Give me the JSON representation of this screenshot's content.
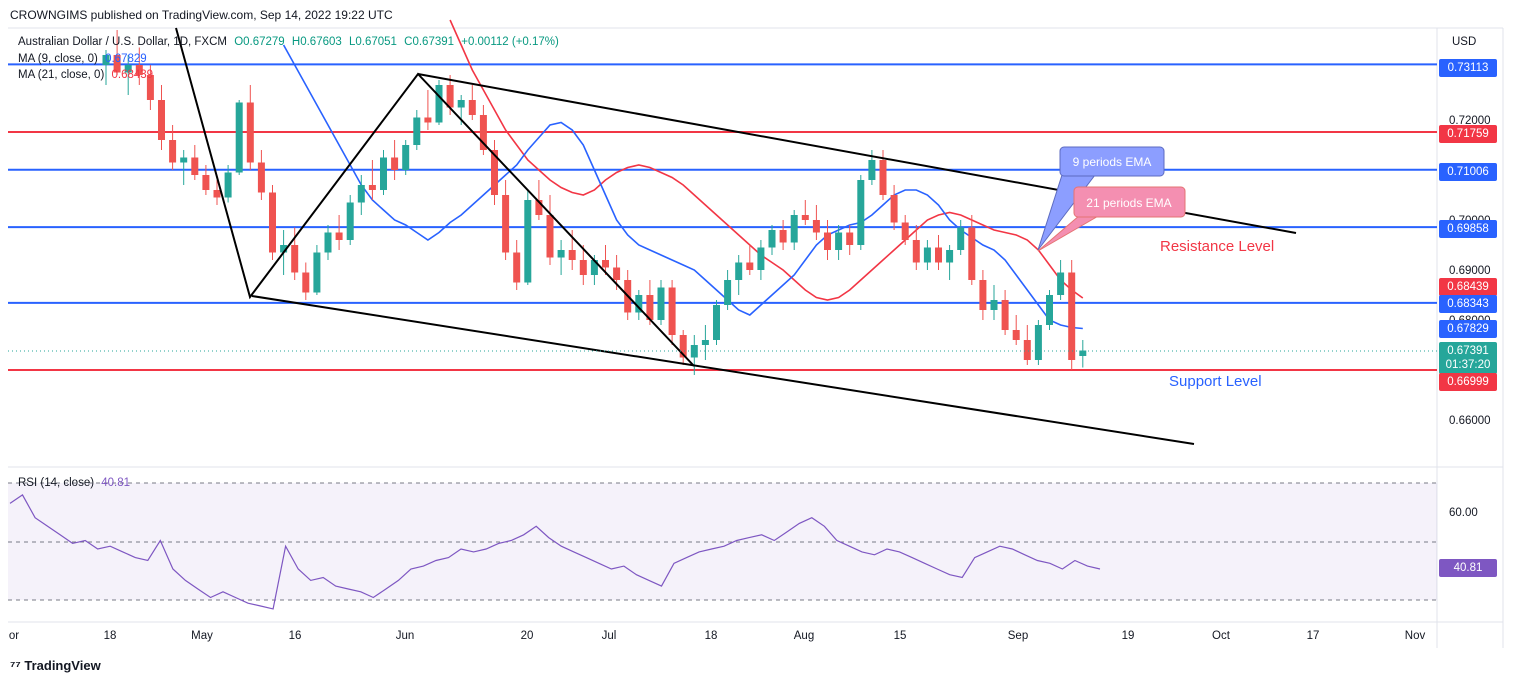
{
  "header": {
    "publisher": "CROWNGIMS published on TradingView.com, Sep 14, 2022 19:22 UTC",
    "symbol": "Australian Dollar / U.S. Dollar, 1D, FXCM",
    "ohlc": {
      "o": "O0.67279",
      "h": "H0.67603",
      "l": "L0.67051",
      "c": "C0.67391",
      "chg": "+0.00112 (+0.17%)"
    },
    "ma9": {
      "label": "MA (9, close, 0)",
      "value": "0.67829"
    },
    "ma21": {
      "label": "MA (21, close, 0)",
      "value": "0.68439"
    },
    "currency": "USD"
  },
  "annotations": {
    "ema9": "9 periods EMA",
    "ema21": "21 periods EMA",
    "resistance": "Resistance Level",
    "support": "Support Level"
  },
  "price_tags": {
    "t1": "0.73113",
    "t2": "0.71759",
    "t3": "0.71006",
    "t4": "0.69858",
    "t5": "0.68439",
    "t6": "0.68343",
    "t7": "0.67829",
    "t8": "0.67391",
    "countdown": "01:37:20",
    "t9": "0.66999"
  },
  "rsi": {
    "label": "RSI (14, close)",
    "value": "40.81",
    "tick": "60.00"
  },
  "footer": {
    "brand": "TradingView"
  },
  "colors": {
    "up": "#26a69a",
    "down": "#ef5350",
    "ma9": "#2962ff",
    "ma21": "#f23645",
    "rsi": "#7e57c2",
    "blue_level": "#2962ff",
    "red_level": "#f23645"
  },
  "chart_data": [
    {
      "type": "candlestick",
      "title": "Australian Dollar / U.S. Dollar, 1D, FXCM",
      "ylim": [
        0.654,
        0.739
      ],
      "price_ticks": [
        0.72,
        0.7,
        0.69,
        0.68,
        0.66
      ],
      "x_tick_labels": [
        "or",
        "18",
        "May",
        "16",
        "Jun",
        "20",
        "Jul",
        "18",
        "Aug",
        "15",
        "Sep",
        "19",
        "Oct",
        "17",
        "Nov"
      ],
      "horizontal_levels": [
        {
          "value": 0.73113,
          "color": "blue"
        },
        {
          "value": 0.71759,
          "color": "red"
        },
        {
          "value": 0.71006,
          "color": "blue"
        },
        {
          "value": 0.69858,
          "color": "blue"
        },
        {
          "value": 0.68343,
          "color": "blue"
        },
        {
          "value": 0.66999,
          "color": "red"
        }
      ],
      "candles_ohlc": [
        [
          0.731,
          0.734,
          0.727,
          0.733
        ],
        [
          0.733,
          0.738,
          0.729,
          0.7295
        ],
        [
          0.7295,
          0.733,
          0.725,
          0.731
        ],
        [
          0.731,
          0.7345,
          0.727,
          0.729
        ],
        [
          0.729,
          0.731,
          0.722,
          0.724
        ],
        [
          0.724,
          0.727,
          0.714,
          0.716
        ],
        [
          0.716,
          0.719,
          0.71,
          0.7115
        ],
        [
          0.7115,
          0.714,
          0.707,
          0.7125
        ],
        [
          0.7125,
          0.715,
          0.708,
          0.709
        ],
        [
          0.709,
          0.711,
          0.705,
          0.706
        ],
        [
          0.706,
          0.708,
          0.703,
          0.7045
        ],
        [
          0.7045,
          0.711,
          0.7035,
          0.7095
        ],
        [
          0.7095,
          0.724,
          0.709,
          0.7235
        ],
        [
          0.7235,
          0.727,
          0.71,
          0.7115
        ],
        [
          0.7115,
          0.714,
          0.704,
          0.7055
        ],
        [
          0.7055,
          0.707,
          0.692,
          0.6935
        ],
        [
          0.6935,
          0.698,
          0.689,
          0.695
        ],
        [
          0.695,
          0.6985,
          0.688,
          0.6895
        ],
        [
          0.6895,
          0.6915,
          0.684,
          0.6855
        ],
        [
          0.6855,
          0.695,
          0.685,
          0.6935
        ],
        [
          0.6935,
          0.699,
          0.692,
          0.6975
        ],
        [
          0.6975,
          0.701,
          0.694,
          0.696
        ],
        [
          0.696,
          0.705,
          0.695,
          0.7035
        ],
        [
          0.7035,
          0.709,
          0.701,
          0.707
        ],
        [
          0.707,
          0.712,
          0.704,
          0.706
        ],
        [
          0.706,
          0.714,
          0.705,
          0.7125
        ],
        [
          0.7125,
          0.716,
          0.708,
          0.71
        ],
        [
          0.71,
          0.716,
          0.709,
          0.715
        ],
        [
          0.715,
          0.722,
          0.714,
          0.7205
        ],
        [
          0.7205,
          0.726,
          0.718,
          0.7195
        ],
        [
          0.7195,
          0.728,
          0.719,
          0.727
        ],
        [
          0.727,
          0.729,
          0.721,
          0.7225
        ],
        [
          0.7225,
          0.725,
          0.719,
          0.724
        ],
        [
          0.724,
          0.727,
          0.72,
          0.721
        ],
        [
          0.721,
          0.723,
          0.713,
          0.714
        ],
        [
          0.714,
          0.716,
          0.703,
          0.705
        ],
        [
          0.705,
          0.708,
          0.692,
          0.6935
        ],
        [
          0.6935,
          0.696,
          0.686,
          0.6875
        ],
        [
          0.6875,
          0.706,
          0.687,
          0.704
        ],
        [
          0.704,
          0.708,
          0.7,
          0.701
        ],
        [
          0.701,
          0.705,
          0.691,
          0.6925
        ],
        [
          0.6925,
          0.696,
          0.689,
          0.694
        ],
        [
          0.694,
          0.698,
          0.69,
          0.692
        ],
        [
          0.692,
          0.695,
          0.687,
          0.689
        ],
        [
          0.689,
          0.693,
          0.687,
          0.692
        ],
        [
          0.692,
          0.695,
          0.689,
          0.6905
        ],
        [
          0.6905,
          0.693,
          0.686,
          0.688
        ],
        [
          0.688,
          0.69,
          0.68,
          0.6815
        ],
        [
          0.6815,
          0.686,
          0.68,
          0.685
        ],
        [
          0.685,
          0.688,
          0.679,
          0.68
        ],
        [
          0.68,
          0.688,
          0.679,
          0.6865
        ],
        [
          0.6865,
          0.688,
          0.675,
          0.677
        ],
        [
          0.677,
          0.678,
          0.671,
          0.6725
        ],
        [
          0.6725,
          0.677,
          0.669,
          0.675
        ],
        [
          0.675,
          0.679,
          0.672,
          0.676
        ],
        [
          0.676,
          0.684,
          0.675,
          0.683
        ],
        [
          0.683,
          0.69,
          0.682,
          0.688
        ],
        [
          0.688,
          0.693,
          0.685,
          0.6915
        ],
        [
          0.6915,
          0.695,
          0.689,
          0.69
        ],
        [
          0.69,
          0.696,
          0.688,
          0.6945
        ],
        [
          0.6945,
          0.699,
          0.693,
          0.698
        ],
        [
          0.698,
          0.7,
          0.694,
          0.6955
        ],
        [
          0.6955,
          0.702,
          0.694,
          0.701
        ],
        [
          0.701,
          0.704,
          0.699,
          0.7
        ],
        [
          0.7,
          0.703,
          0.696,
          0.6975
        ],
        [
          0.6975,
          0.7,
          0.692,
          0.694
        ],
        [
          0.694,
          0.699,
          0.692,
          0.6975
        ],
        [
          0.6975,
          0.699,
          0.693,
          0.695
        ],
        [
          0.695,
          0.709,
          0.694,
          0.708
        ],
        [
          0.708,
          0.714,
          0.707,
          0.712
        ],
        [
          0.712,
          0.714,
          0.704,
          0.705
        ],
        [
          0.705,
          0.707,
          0.698,
          0.6995
        ],
        [
          0.6995,
          0.701,
          0.695,
          0.696
        ],
        [
          0.696,
          0.699,
          0.69,
          0.6915
        ],
        [
          0.6915,
          0.696,
          0.69,
          0.6945
        ],
        [
          0.6945,
          0.697,
          0.69,
          0.6915
        ],
        [
          0.6915,
          0.695,
          0.688,
          0.694
        ],
        [
          0.694,
          0.7,
          0.693,
          0.6985
        ],
        [
          0.6985,
          0.701,
          0.687,
          0.688
        ],
        [
          0.688,
          0.69,
          0.68,
          0.682
        ],
        [
          0.682,
          0.687,
          0.68,
          0.684
        ],
        [
          0.684,
          0.686,
          0.677,
          0.678
        ],
        [
          0.678,
          0.681,
          0.675,
          0.676
        ],
        [
          0.676,
          0.679,
          0.671,
          0.672
        ],
        [
          0.672,
          0.68,
          0.671,
          0.679
        ],
        [
          0.679,
          0.686,
          0.678,
          0.685
        ],
        [
          0.685,
          0.692,
          0.684,
          0.6895
        ],
        [
          0.6895,
          0.692,
          0.67,
          0.672
        ],
        [
          0.6728,
          0.676,
          0.6705,
          0.6739
        ]
      ],
      "ma9_values": [
        0.735,
        0.731,
        0.727,
        0.723,
        0.719,
        0.715,
        0.711,
        0.707,
        0.704,
        0.702,
        0.7,
        0.699,
        0.6975,
        0.696,
        0.6975,
        0.6995,
        0.701,
        0.703,
        0.705,
        0.707,
        0.709,
        0.711,
        0.714,
        0.7165,
        0.719,
        0.7195,
        0.718,
        0.715,
        0.71,
        0.705,
        0.7,
        0.697,
        0.695,
        0.694,
        0.693,
        0.692,
        0.691,
        0.69,
        0.688,
        0.686,
        0.684,
        0.682,
        0.681,
        0.683,
        0.685,
        0.687,
        0.689,
        0.692,
        0.695,
        0.697,
        0.698,
        0.699,
        0.6995,
        0.701,
        0.703,
        0.705,
        0.706,
        0.706,
        0.705,
        0.703,
        0.7,
        0.698,
        0.6965,
        0.695,
        0.694,
        0.692,
        0.689,
        0.686,
        0.683,
        0.68,
        0.679,
        0.6785,
        0.6783
      ],
      "ma21_values": [
        0.74,
        0.735,
        0.73,
        0.726,
        0.722,
        0.718,
        0.715,
        0.712,
        0.71,
        0.708,
        0.7065,
        0.7055,
        0.705,
        0.706,
        0.708,
        0.7095,
        0.7105,
        0.711,
        0.7105,
        0.7095,
        0.7085,
        0.707,
        0.705,
        0.703,
        0.701,
        0.699,
        0.697,
        0.695,
        0.693,
        0.6915,
        0.69,
        0.688,
        0.686,
        0.6845,
        0.684,
        0.6845,
        0.686,
        0.688,
        0.69,
        0.692,
        0.694,
        0.696,
        0.698,
        0.7,
        0.701,
        0.7015,
        0.701,
        0.7,
        0.699,
        0.698,
        0.6975,
        0.697,
        0.696,
        0.694,
        0.691,
        0.688,
        0.686,
        0.6844
      ],
      "trend_lines": [
        {
          "name": "upper-channel",
          "from": [
            "Jun",
            0.7315
          ],
          "to": [
            "Oct 12",
            0.6986
          ]
        },
        {
          "name": "lower-channel",
          "from": [
            "May 9",
            0.685
          ],
          "to": [
            "Sep 28",
            0.6545
          ]
        }
      ]
    },
    {
      "type": "line",
      "title": "RSI (14, close)",
      "ylim": [
        25,
        75
      ],
      "y_ticks": [
        60.0
      ],
      "series": [
        {
          "name": "RSI (14, close)",
          "values": [
            63,
            66,
            58,
            55,
            52,
            49,
            50,
            47,
            48,
            46,
            44,
            43,
            50,
            40,
            36,
            33,
            30,
            32,
            30,
            28,
            27,
            26,
            48,
            40,
            36,
            37,
            34,
            33,
            32,
            30,
            33,
            36,
            40,
            41,
            43,
            44,
            47,
            46,
            47,
            49,
            50,
            52,
            55,
            51,
            48,
            46,
            44,
            42,
            40,
            41,
            38,
            36,
            34,
            42,
            44,
            46,
            47,
            48,
            50,
            51,
            52,
            50,
            53,
            56,
            58,
            55,
            50,
            48,
            46,
            45,
            47,
            46,
            44,
            42,
            40,
            38,
            37,
            44,
            46,
            48,
            47,
            45,
            43,
            42,
            40,
            43,
            41,
            40
          ]
        }
      ]
    }
  ]
}
